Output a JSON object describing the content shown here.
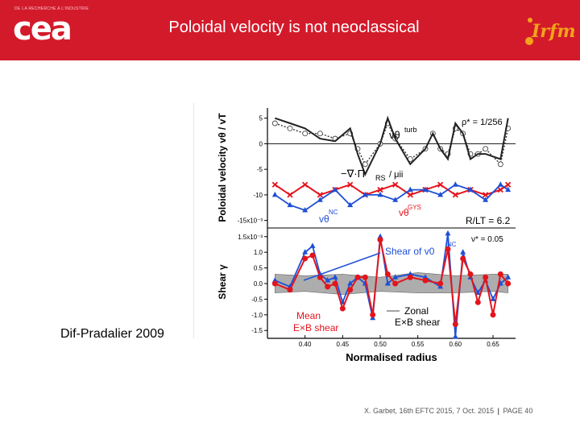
{
  "header": {
    "small_text": "DE LA RECHERCHE A L'INDUSTRIE",
    "logo_text": "cea",
    "title": "Poloidal velocity is not neoclassical",
    "partner_logo_text": "Irfm"
  },
  "credit": "Dif-Pradalier 2009",
  "footer": {
    "citation": "X. Garbet, 16th EFTC 2015, 7 Oct. 2015",
    "separator": "|",
    "page": "PAGE 40"
  },
  "colors": {
    "header_bg": "#d31a2b",
    "red_series": "#e3141c",
    "blue_series": "#1f4fd6",
    "gray_band": "#999999"
  },
  "chart_data": [
    {
      "panel": "top",
      "type": "line",
      "ylabel": "Poloidal velocity  vθ / vT",
      "ytick_labels": [
        "5",
        "0",
        "-5",
        "-10",
        "-15x10⁻³"
      ],
      "ylim": [
        -16,
        7
      ],
      "xlim": [
        0.35,
        0.68
      ],
      "annotations": [
        "ρ* = 1/256",
        "R/LT = 6.2"
      ],
      "series": [
        {
          "name": "vθ turb",
          "style": "black-solid",
          "x": [
            0.36,
            0.38,
            0.4,
            0.42,
            0.44,
            0.46,
            0.47,
            0.48,
            0.5,
            0.51,
            0.52,
            0.54,
            0.56,
            0.57,
            0.58,
            0.59,
            0.6,
            0.61,
            0.62,
            0.63,
            0.64,
            0.66,
            0.67
          ],
          "y": [
            5,
            4,
            3,
            1,
            0.5,
            3,
            -2,
            -6,
            0,
            5,
            1,
            -4,
            -1,
            2,
            -1,
            -3,
            4,
            2,
            -3,
            -2,
            -2,
            -3,
            5
          ]
        },
        {
          "name": "−∇·ΠRS / μii",
          "style": "black-dotted",
          "x": [
            0.36,
            0.38,
            0.4,
            0.42,
            0.44,
            0.46,
            0.47,
            0.48,
            0.5,
            0.51,
            0.52,
            0.54,
            0.56,
            0.57,
            0.58,
            0.59,
            0.6,
            0.61,
            0.62,
            0.63,
            0.64,
            0.66,
            0.67
          ],
          "y": [
            4,
            3,
            2,
            2,
            1,
            2,
            -1,
            -4,
            0,
            4,
            1,
            -3,
            -1,
            2,
            -1,
            -2,
            3,
            2,
            -2,
            -2,
            -1,
            -4,
            3
          ]
        },
        {
          "name": "vθ GYS",
          "style": "red-x",
          "x": [
            0.36,
            0.38,
            0.4,
            0.42,
            0.44,
            0.46,
            0.48,
            0.5,
            0.52,
            0.54,
            0.56,
            0.58,
            0.6,
            0.62,
            0.64,
            0.66,
            0.67
          ],
          "y": [
            -8,
            -10,
            -8,
            -10,
            -9,
            -8,
            -10,
            -9,
            -8,
            -10,
            -9,
            -8,
            -10,
            -9,
            -10,
            -9,
            -8
          ]
        },
        {
          "name": "vθ NC",
          "style": "blue-triangle",
          "x": [
            0.36,
            0.38,
            0.4,
            0.42,
            0.44,
            0.46,
            0.48,
            0.5,
            0.52,
            0.54,
            0.56,
            0.58,
            0.6,
            0.62,
            0.64,
            0.66,
            0.67
          ],
          "y": [
            -10,
            -12,
            -13,
            -11,
            -9,
            -12,
            -10,
            -10,
            -11,
            -9,
            -9,
            -10,
            -8,
            -9,
            -11,
            -8,
            -9
          ]
        }
      ]
    },
    {
      "panel": "bottom",
      "type": "line",
      "xlabel": "Normalised radius",
      "ylabel": "Shear γ",
      "x_tick_labels": [
        "0.40",
        "0.45",
        "0.50",
        "0.55",
        "0.60",
        "0.65"
      ],
      "ytick_labels": [
        "1.5x10⁻³",
        "1.0",
        "0.5",
        "0.0",
        "-0.5",
        "-1.0",
        "-1.5"
      ],
      "ylim": [
        -1.7,
        1.7
      ],
      "xlim": [
        0.35,
        0.68
      ],
      "annotations": [
        "ν* = 0.05"
      ],
      "series": [
        {
          "name": "Shear of v0 NC",
          "style": "blue-triangle",
          "x": [
            0.36,
            0.38,
            0.4,
            0.41,
            0.42,
            0.43,
            0.44,
            0.45,
            0.46,
            0.47,
            0.48,
            0.49,
            0.5,
            0.51,
            0.52,
            0.54,
            0.56,
            0.58,
            0.59,
            0.6,
            0.61,
            0.62,
            0.63,
            0.64,
            0.65,
            0.66,
            0.67
          ],
          "y": [
            0.1,
            -0.1,
            1.0,
            1.2,
            0.3,
            0.1,
            0.2,
            -0.6,
            0.0,
            0.2,
            0.0,
            -1.1,
            1.5,
            0.0,
            0.2,
            0.3,
            0.2,
            -0.1,
            1.6,
            -1.7,
            1.0,
            0.2,
            -0.3,
            0.1,
            -0.5,
            0.0,
            0.2
          ]
        },
        {
          "name": "Mean E×B shear",
          "style": "red-circle",
          "x": [
            0.36,
            0.38,
            0.4,
            0.41,
            0.42,
            0.43,
            0.44,
            0.45,
            0.46,
            0.47,
            0.48,
            0.49,
            0.5,
            0.51,
            0.52,
            0.54,
            0.56,
            0.58,
            0.59,
            0.6,
            0.61,
            0.62,
            0.63,
            0.64,
            0.65,
            0.66,
            0.67
          ],
          "y": [
            0.0,
            -0.2,
            0.8,
            0.9,
            0.2,
            -0.1,
            0.0,
            -0.8,
            -0.2,
            0.2,
            0.2,
            -1.0,
            1.4,
            0.3,
            0.0,
            0.2,
            0.1,
            0.0,
            1.1,
            -1.3,
            0.8,
            0.3,
            -0.6,
            0.2,
            -1.0,
            0.3,
            0.0
          ]
        },
        {
          "name": "Zonal E×B shear",
          "style": "gray-band",
          "x": [
            0.36,
            0.4,
            0.45,
            0.5,
            0.55,
            0.6,
            0.65,
            0.67
          ],
          "y_upper": [
            0.3,
            0.25,
            0.3,
            0.2,
            0.35,
            0.25,
            0.3,
            0.3
          ],
          "y_lower": [
            -0.3,
            -0.25,
            -0.35,
            -0.25,
            -0.3,
            -0.3,
            -0.25,
            -0.3
          ]
        }
      ],
      "legend_labels": {
        "shear_nc": "Shear of v0",
        "shear_nc_sup": "NC",
        "mean": "Mean",
        "mean2": "E×B shear",
        "zonal": "Zonal",
        "zonal2": "E×B shear"
      }
    }
  ],
  "top_labels": {
    "turb": "vθ",
    "turb_sup": "turb",
    "rs": "−∇·Π",
    "rs_sub": "RS",
    "rs_tail": "/ μii",
    "gys": "vθ",
    "gys_sup": "GYS",
    "nc": "vθ",
    "nc_sup": "NC",
    "rho": "ρ* = 1/256",
    "rlt": "R/LT = 6.2",
    "nu": "ν* = 0.05"
  }
}
